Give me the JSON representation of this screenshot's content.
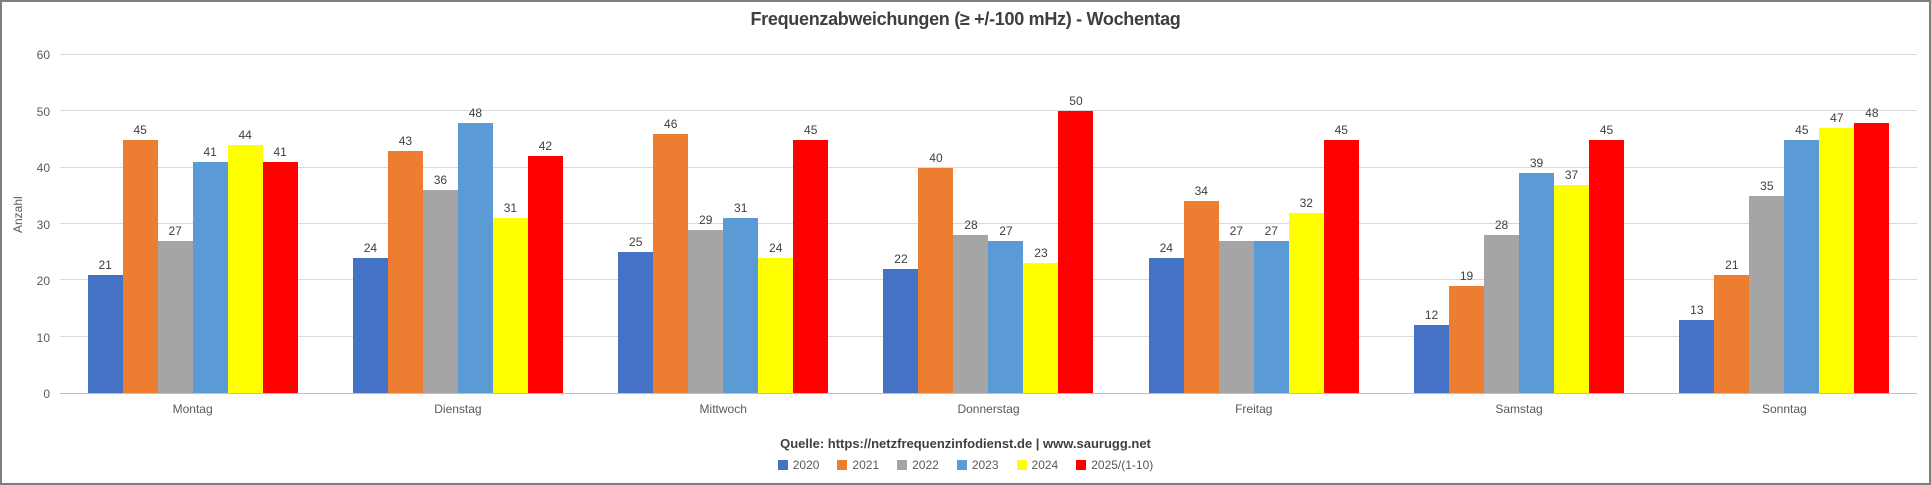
{
  "chart_data": {
    "type": "bar",
    "title": "Frequenzabweichungen (≥ +/-100 mHz) - Wochentag",
    "ylabel": "Anzahl",
    "ylim": [
      0,
      60
    ],
    "yticks": [
      0,
      10,
      20,
      30,
      40,
      50,
      60
    ],
    "grid": true,
    "legend_position": "bottom",
    "categories": [
      "Montag",
      "Dienstag",
      "Mittwoch",
      "Donnerstag",
      "Freitag",
      "Samstag",
      "Sonntag"
    ],
    "series": [
      {
        "name": "2020",
        "color": "#4472C4",
        "values": [
          21,
          24,
          25,
          22,
          24,
          12,
          13
        ]
      },
      {
        "name": "2021",
        "color": "#ED7D31",
        "values": [
          45,
          43,
          46,
          40,
          34,
          19,
          21
        ]
      },
      {
        "name": "2022",
        "color": "#A5A5A5",
        "values": [
          27,
          36,
          29,
          28,
          27,
          28,
          35
        ]
      },
      {
        "name": "2023",
        "color": "#5B9BD5",
        "values": [
          41,
          48,
          31,
          27,
          27,
          39,
          45
        ]
      },
      {
        "name": "2024",
        "color": "#FFFF00",
        "values": [
          44,
          31,
          24,
          23,
          32,
          37,
          47
        ]
      },
      {
        "name": "2025/(1-10)",
        "color": "#FF0000",
        "values": [
          41,
          42,
          45,
          50,
          45,
          45,
          48
        ]
      }
    ]
  },
  "footer": {
    "source": "Quelle: https://netzfrequenzinfodienst.de | www.saurugg.net"
  }
}
